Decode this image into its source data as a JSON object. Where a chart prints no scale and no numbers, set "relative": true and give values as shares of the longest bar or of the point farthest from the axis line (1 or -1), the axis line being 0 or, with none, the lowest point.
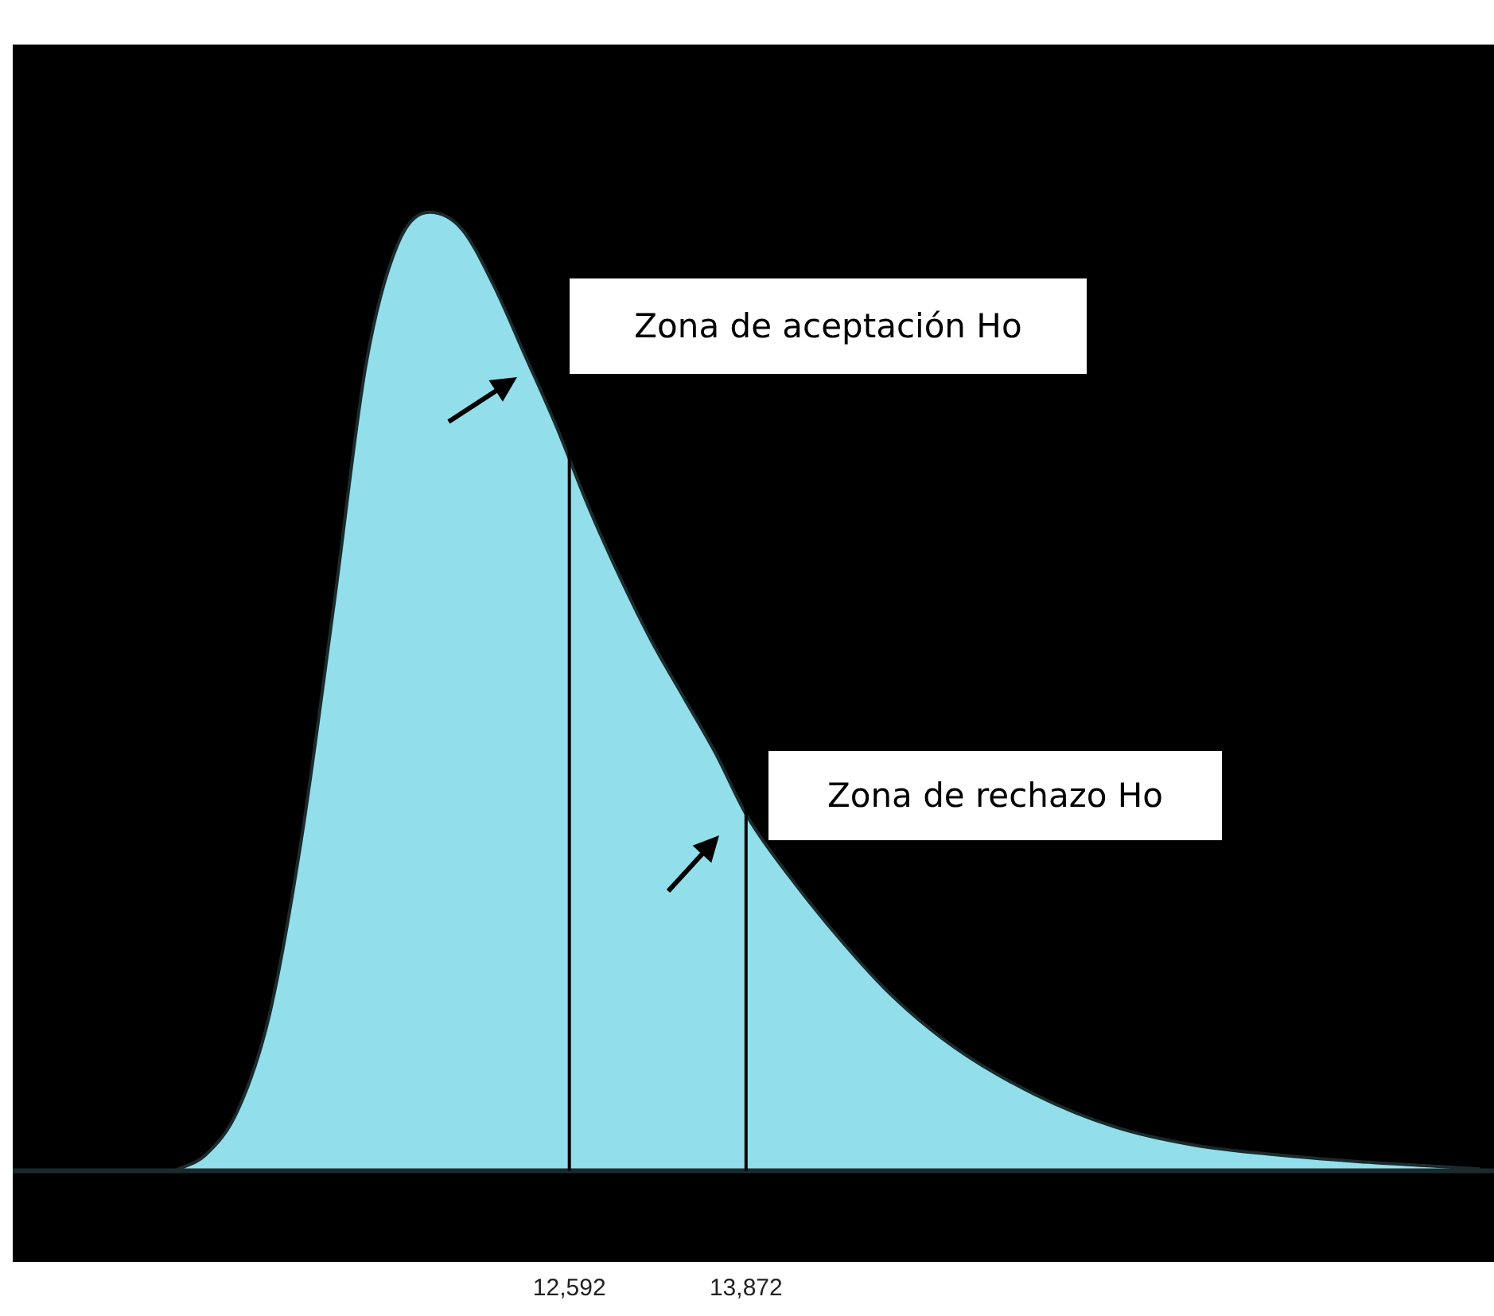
{
  "chart_data": {
    "type": "area",
    "relative": true,
    "x": [
      9730,
      9960,
      10190,
      10420,
      10650,
      10890,
      11120,
      11350,
      11580,
      11810,
      12040,
      12270,
      12500,
      12730,
      12960,
      13190,
      13420,
      13650,
      13880,
      14230,
      14580,
      14920,
      15380,
      15960,
      16540,
      17110,
      17690,
      18270,
      18840,
      19190
    ],
    "series": [
      {
        "color": "#92dfeb",
        "values": [
          0,
          0.017,
          0.063,
          0.163,
          0.345,
          0.594,
          0.842,
          0.967,
          1.0,
          0.983,
          0.925,
          0.851,
          0.776,
          0.693,
          0.619,
          0.552,
          0.494,
          0.436,
          0.37,
          0.299,
          0.237,
          0.184,
          0.129,
          0.08,
          0.046,
          0.027,
          0.017,
          0.01,
          0.005,
          0.002
        ]
      }
    ],
    "xlim": [
      8560,
      19290
    ],
    "xticks": [
      {
        "value": 12592,
        "label": "12,592"
      },
      {
        "value": 13872,
        "label": "13,872"
      }
    ],
    "ref_lines": [
      {
        "axis": "x",
        "value": 12592,
        "color": "#000000"
      },
      {
        "axis": "x",
        "value": 13872,
        "color": "#000000"
      }
    ],
    "annotations": [
      "Zona de aceptación Ho",
      "Zona de rechazo Ho"
    ],
    "legend": false,
    "marker": "none"
  }
}
